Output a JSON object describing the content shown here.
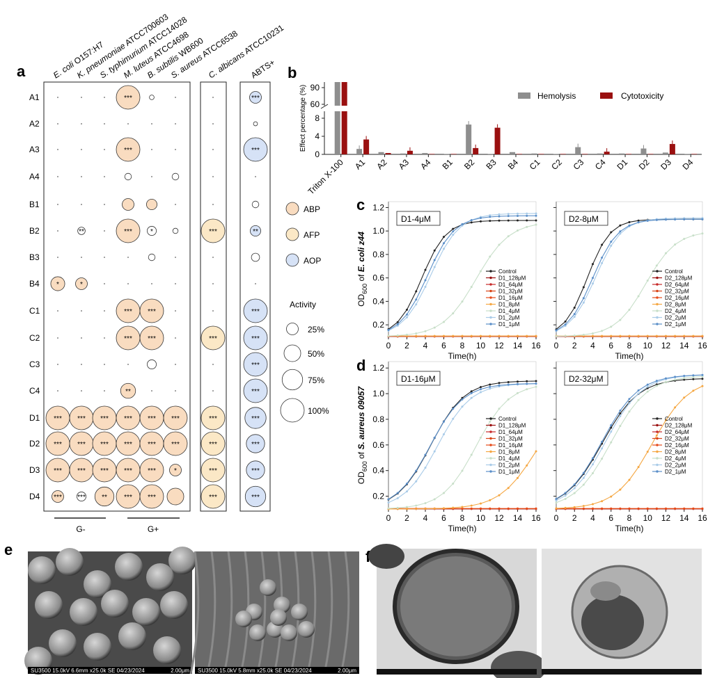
{
  "panel_labels": [
    "a",
    "b",
    "c",
    "d",
    "e",
    "f"
  ],
  "chart_data": [
    {
      "type": "bubble-matrix",
      "panel": "a",
      "columns": [
        "E. coli O157:H7",
        "K. pneumoniae ATCC700603",
        "S. typhimurium ATCC14028",
        "M. luteus ATCC4698",
        "B. subtilis WB600",
        "S. aureus ATCC6538",
        "C. albicans ATCC10231",
        "ABTS+"
      ],
      "rows": [
        "A1",
        "A2",
        "A3",
        "A4",
        "B1",
        "B2",
        "B3",
        "B4",
        "C1",
        "C2",
        "C3",
        "C4",
        "D1",
        "D2",
        "D3",
        "D4"
      ],
      "values": [
        [
          0,
          0,
          0,
          100,
          4,
          0,
          0,
          25
        ],
        [
          0,
          0,
          0,
          0,
          0,
          0,
          0,
          3
        ],
        [
          0,
          0,
          0,
          100,
          0,
          0,
          0,
          100
        ],
        [
          0,
          0,
          0,
          8,
          0,
          8,
          0,
          0
        ],
        [
          0,
          0,
          0,
          25,
          20,
          0,
          0,
          8
        ],
        [
          0,
          10,
          0,
          100,
          15,
          5,
          100,
          20
        ],
        [
          0,
          0,
          0,
          0,
          8,
          0,
          0,
          12
        ],
        [
          35,
          25,
          0,
          0,
          0,
          0,
          0,
          0
        ],
        [
          0,
          0,
          0,
          100,
          100,
          0,
          0,
          100
        ],
        [
          0,
          0,
          0,
          100,
          100,
          0,
          100,
          100
        ],
        [
          0,
          0,
          0,
          0,
          15,
          0,
          0,
          100
        ],
        [
          0,
          0,
          0,
          40,
          0,
          0,
          0,
          100
        ],
        [
          100,
          100,
          100,
          100,
          100,
          100,
          100,
          80
        ],
        [
          100,
          100,
          100,
          100,
          100,
          100,
          100,
          60
        ],
        [
          100,
          100,
          100,
          100,
          100,
          25,
          100,
          60
        ],
        [
          25,
          15,
          65,
          100,
          100,
          50,
          100,
          75
        ]
      ],
      "stars": [
        [
          "",
          "",
          "",
          "***",
          "",
          "",
          "",
          "***"
        ],
        [
          "",
          "",
          "",
          "",
          "",
          "",
          "",
          ""
        ],
        [
          "",
          "",
          "",
          "***",
          "",
          "",
          "",
          "***"
        ],
        [
          "",
          "",
          "",
          "",
          "",
          "",
          "",
          ""
        ],
        [
          "",
          "",
          "",
          "",
          "",
          "",
          "",
          ""
        ],
        [
          "",
          "**",
          "",
          "***",
          "*",
          "",
          "***",
          "**"
        ],
        [
          "",
          "",
          "",
          "",
          "",
          "",
          "",
          ""
        ],
        [
          "*",
          "*",
          "",
          "",
          "",
          "",
          "",
          ""
        ],
        [
          "",
          "",
          "",
          "***",
          "***",
          "",
          "",
          "***"
        ],
        [
          "",
          "",
          "",
          "***",
          "***",
          "",
          "***",
          "***"
        ],
        [
          "",
          "",
          "",
          "",
          "",
          "",
          "",
          "***"
        ],
        [
          "",
          "",
          "",
          "**",
          "",
          "",
          "",
          "***"
        ],
        [
          "***",
          "***",
          "***",
          "***",
          "***",
          "***",
          "***",
          "***"
        ],
        [
          "***",
          "***",
          "***",
          "***",
          "***",
          "***",
          "***",
          "***"
        ],
        [
          "***",
          "***",
          "***",
          "***",
          "***",
          "*",
          "***",
          "***"
        ],
        [
          "***",
          "***",
          "**",
          "***",
          "***",
          "",
          "***",
          "***"
        ]
      ],
      "group_labels": [
        "G-",
        "G+"
      ],
      "legend": [
        "ABP",
        "AFP",
        "AOP"
      ],
      "size_legend_title": "Activity",
      "size_legend": [
        "25%",
        "50%",
        "75%",
        "100%"
      ],
      "colors": {
        "ABP": "#f9dcc0",
        "AFP": "#fbe8c6",
        "AOP": "#d6e2f6"
      }
    },
    {
      "type": "bar",
      "panel": "b",
      "ylabel": "Effect percentage (%)",
      "yticks": [
        "0",
        "4",
        "8",
        "60",
        "90"
      ],
      "categories": [
        "Triton X-100",
        "A1",
        "A2",
        "A3",
        "A4",
        "B1",
        "B2",
        "B3",
        "B4",
        "C1",
        "C2",
        "C3",
        "C4",
        "D1",
        "D2",
        "D3",
        "D4"
      ],
      "series": [
        {
          "name": "Hemolysis",
          "color": "#8e8e8e",
          "values": [
            100,
            1.2,
            0.5,
            0.2,
            0.3,
            0.1,
            6.6,
            0.1,
            0.5,
            0.2,
            0.1,
            1.6,
            0.2,
            0.2,
            1.3,
            0.4,
            0.1
          ]
        },
        {
          "name": "Cytotoxicity",
          "color": "#9a1010",
          "values": [
            100,
            3.3,
            0.3,
            0.8,
            0.1,
            0.1,
            1.4,
            5.9,
            0.1,
            0.1,
            0.1,
            0.1,
            0.6,
            0.1,
            0.1,
            2.3,
            0.1
          ]
        }
      ]
    },
    {
      "type": "line",
      "panel": "c",
      "ylabel_prefix": "OD",
      "ylabel_sub": "600",
      "ylabel_of": " of ",
      "ylabel_org": "E. coli z44",
      "xlabel": "Time(h)",
      "xticks": [
        "0",
        "2",
        "4",
        "6",
        "8",
        "10",
        "12",
        "14",
        "16"
      ],
      "yticks": [
        "0.2",
        "0.4",
        "0.6",
        "0.8",
        "1.0",
        "1.2"
      ],
      "subplots": [
        {
          "title": "D1-4μM",
          "legend": [
            "Control",
            "D1_128μM",
            "D1_64μM",
            "D1_32μM",
            "D1_16μM",
            "D1_8μM",
            "D1_4μM",
            "D1_2μM",
            "D1_1μM"
          ]
        },
        {
          "title": "D2-8μM",
          "legend": [
            "Control",
            "D2_128μM",
            "D2_64μM",
            "D2_32μM",
            "D2_16μM",
            "D2_8μM",
            "D2_4μM",
            "D2_2μM",
            "D2_1μM"
          ]
        }
      ]
    },
    {
      "type": "line",
      "panel": "d",
      "ylabel_prefix": "OD",
      "ylabel_sub": "600",
      "ylabel_of": " of ",
      "ylabel_org": "S. aureus 09057",
      "xlabel": "Time(h)",
      "xticks": [
        "0",
        "2",
        "4",
        "6",
        "8",
        "10",
        "12",
        "14",
        "16"
      ],
      "yticks": [
        "0.2",
        "0.4",
        "0.6",
        "0.8",
        "1.0",
        "1.2"
      ],
      "subplots": [
        {
          "title": "D1-16μM",
          "legend": [
            "Control",
            "D1_128μM",
            "D1_64μM",
            "D1_32μM",
            "D1_16μM",
            "D1_8μM",
            "D1_4μM",
            "D1_2μM",
            "D1_1μM"
          ]
        },
        {
          "title": "D2-32μM",
          "legend": [
            "Control",
            "D2_128μM",
            "D2_64μM",
            "D2_32μM",
            "D2_16μM",
            "D2_8μM",
            "D2_4μM",
            "D2_2μM",
            "D2_1μM"
          ]
        }
      ]
    }
  ],
  "micrographs": {
    "e": [
      {
        "caption_left": "SU3500 15.0kV 6.6mm x25.0k SE 04/23/2024",
        "caption_right": "2.00μm"
      },
      {
        "caption_left": "SU3500 15.0kV 5.8mm x25.0k SE 04/23/2024",
        "caption_right": "2.00μm"
      }
    ],
    "f": [
      {
        "caption_left": ""
      },
      {
        "caption_left": ""
      }
    ]
  },
  "growth_palette": [
    "#222222",
    "#9a1010",
    "#c62828",
    "#d84315",
    "#e64a19",
    "#f5a742",
    "#c8dfc9",
    "#a9cbe8",
    "#5b8fc9"
  ]
}
